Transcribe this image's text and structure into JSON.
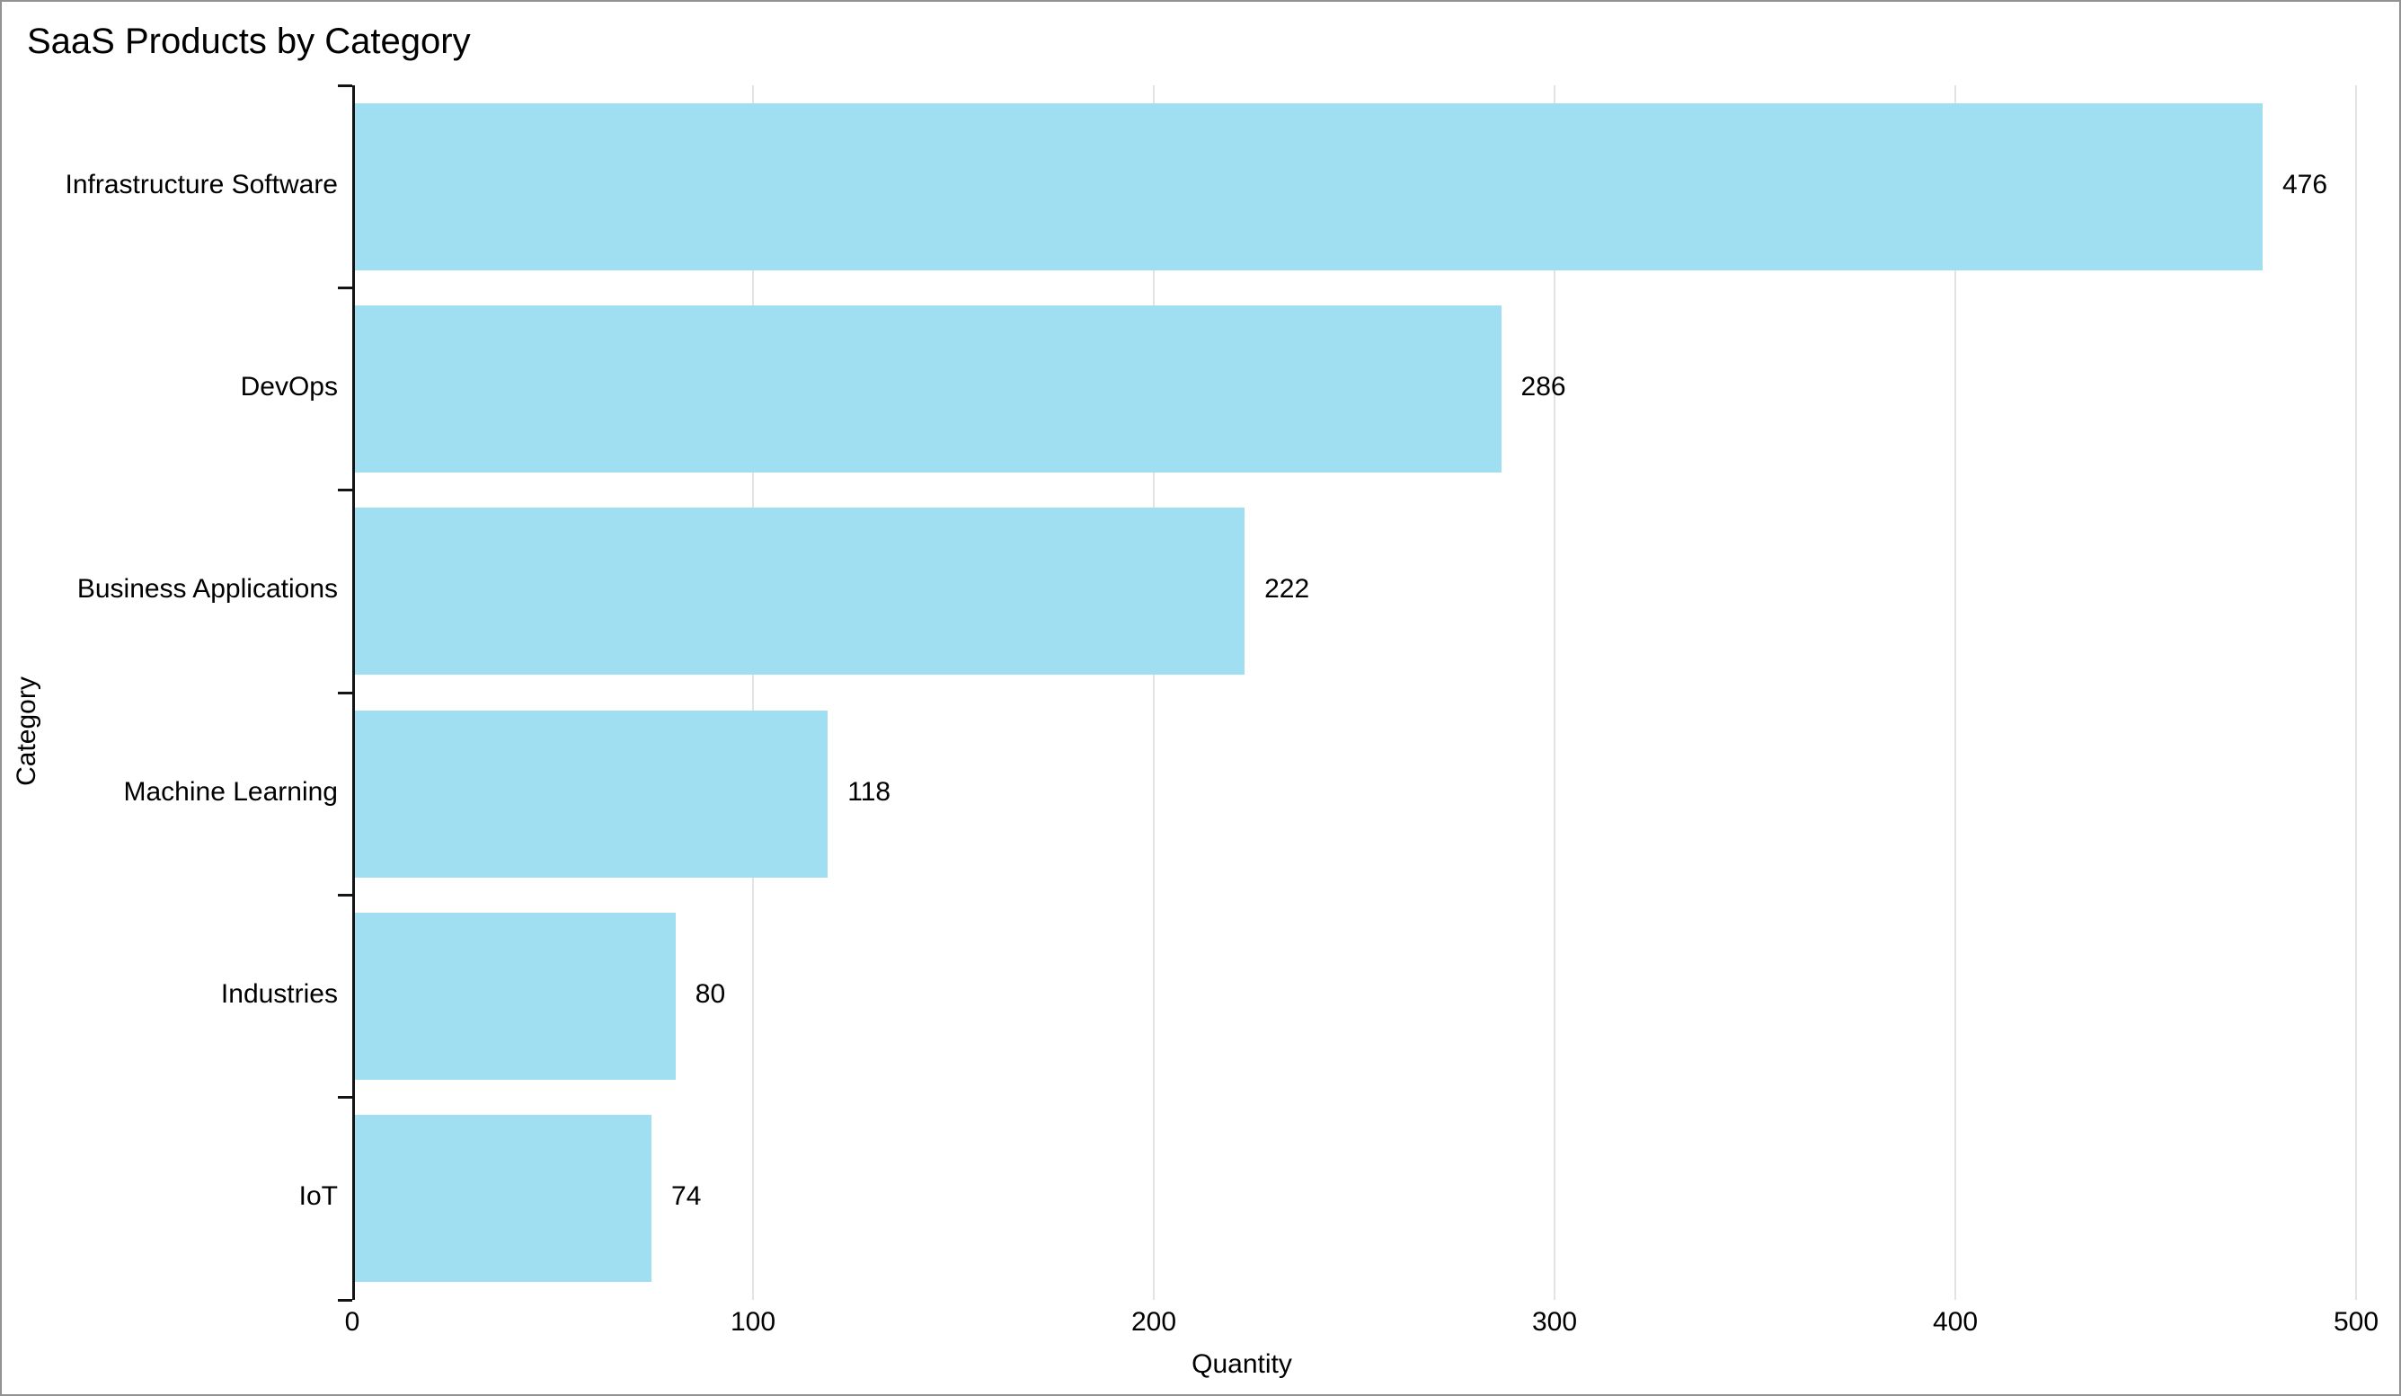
{
  "title": "SaaS Products by Category",
  "chart_data": {
    "type": "bar",
    "orientation": "horizontal",
    "title": "SaaS Products by Category",
    "categories": [
      "Infrastructure Software",
      "DevOps",
      "Business Applications",
      "Machine Learning",
      "Industries",
      "IoT"
    ],
    "values": [
      476,
      286,
      222,
      118,
      80,
      74
    ],
    "value_labels": [
      "476",
      "286",
      "222",
      "118",
      "80",
      "74"
    ],
    "xlabel": "Quantity",
    "ylabel": "Category",
    "xlim": [
      0,
      500
    ],
    "x_ticks": [
      "0",
      "100",
      "200",
      "300",
      "400",
      "500"
    ],
    "grid": true,
    "legend": "none",
    "colors": {
      "bar": "#a0def2",
      "axis": "#141414",
      "gridline": "#e3e3e3",
      "text": "#000000",
      "background": "#ffffff"
    }
  }
}
